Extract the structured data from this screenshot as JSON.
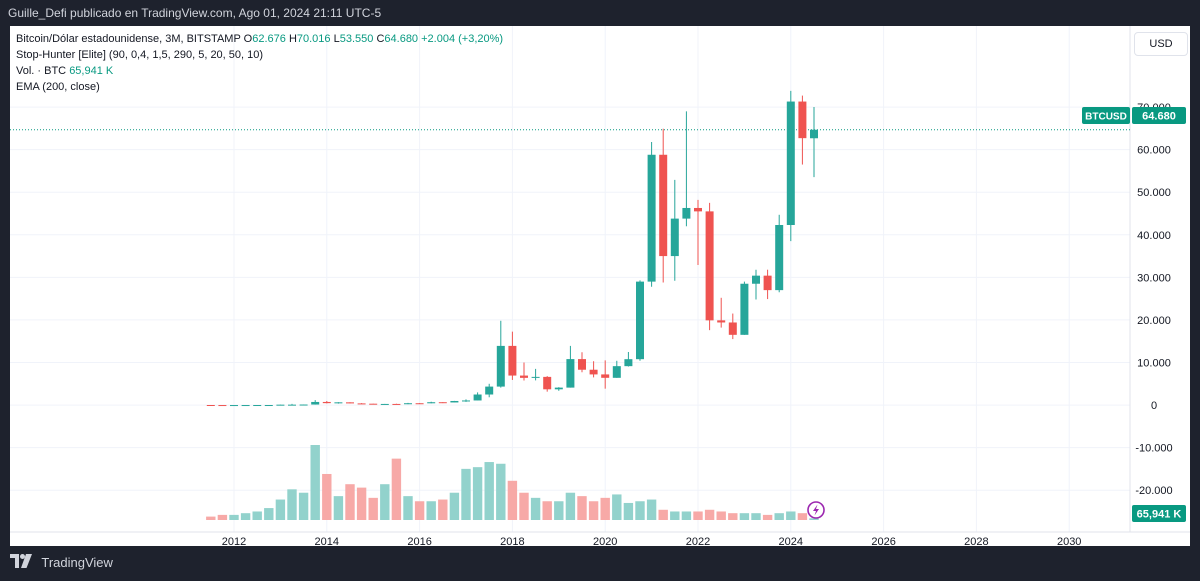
{
  "header": {
    "publisher_line": "Guille_Defi publicado en TradingView.com, Ago 01, 2024 21:11 UTC-5"
  },
  "legend": {
    "line1_prefix": "Bitcoin/Dólar estadounidense, 3M, BITSTAMP",
    "open_label": "O",
    "open": "62.676",
    "high_label": "H",
    "high": "70.016",
    "low_label": "L",
    "low": "53.550",
    "close_label": "C",
    "close": "64.680",
    "change": "+2.004 (+3,20%)",
    "line2": "Stop-Hunter [Elite] (90, 0,4, 1,5, 290, 5, 20, 50, 10)",
    "line3_label": "Vol. · BTC",
    "line3_value": "65,941 K",
    "line4": "EMA (200, close)"
  },
  "currency_button": "USD",
  "price_tag": {
    "symbol": "BTCUSD",
    "value": "64.680"
  },
  "volume_tag": "65,941 K",
  "footer": {
    "brand": "TradingView"
  },
  "colors": {
    "up": "#26a69a",
    "down": "#ef5350",
    "up_vol": "#92d2cc",
    "down_vol": "#f7a9a7",
    "price_line": "#089981"
  },
  "chart_data": {
    "type": "candlestick",
    "ylim": [
      -27000,
      82000
    ],
    "y_ticks": [
      "70.000",
      "60.000",
      "50.000",
      "40.000",
      "30.000",
      "20.000",
      "10.000",
      "0",
      "-10.000",
      "-20.000"
    ],
    "y_tick_values": [
      70000,
      60000,
      50000,
      40000,
      30000,
      20000,
      10000,
      0,
      -10000,
      -20000
    ],
    "x_ticks": [
      "2012",
      "2014",
      "2016",
      "2018",
      "2020",
      "2022",
      "2024",
      "2026",
      "2028",
      "2030"
    ],
    "x_tick_years": [
      2012,
      2014,
      2016,
      2018,
      2020,
      2022,
      2024,
      2026,
      2028,
      2030
    ],
    "last_price": 64680,
    "candles": [
      {
        "t": 2011.5,
        "o": 15,
        "h": 17,
        "l": 2,
        "c": 5
      },
      {
        "t": 2011.75,
        "o": 5,
        "h": 6,
        "l": 2,
        "c": 4
      },
      {
        "t": 2012.0,
        "o": 4,
        "h": 7,
        "l": 4,
        "c": 5
      },
      {
        "t": 2012.25,
        "o": 5,
        "h": 7,
        "l": 4,
        "c": 7
      },
      {
        "t": 2012.5,
        "o": 7,
        "h": 16,
        "l": 6,
        "c": 12
      },
      {
        "t": 2012.75,
        "o": 12,
        "h": 14,
        "l": 10,
        "c": 13
      },
      {
        "t": 2013.0,
        "o": 13,
        "h": 95,
        "l": 13,
        "c": 93
      },
      {
        "t": 2013.25,
        "o": 93,
        "h": 266,
        "l": 65,
        "c": 97
      },
      {
        "t": 2013.5,
        "o": 97,
        "h": 140,
        "l": 65,
        "c": 125
      },
      {
        "t": 2013.75,
        "o": 125,
        "h": 1163,
        "l": 110,
        "c": 730
      },
      {
        "t": 2014.0,
        "o": 730,
        "h": 960,
        "l": 400,
        "c": 450
      },
      {
        "t": 2014.25,
        "o": 450,
        "h": 680,
        "l": 340,
        "c": 640
      },
      {
        "t": 2014.5,
        "o": 640,
        "h": 650,
        "l": 380,
        "c": 390
      },
      {
        "t": 2014.75,
        "o": 390,
        "h": 460,
        "l": 280,
        "c": 320
      },
      {
        "t": 2015.0,
        "o": 320,
        "h": 320,
        "l": 170,
        "c": 245
      },
      {
        "t": 2015.25,
        "o": 245,
        "h": 270,
        "l": 210,
        "c": 265
      },
      {
        "t": 2015.5,
        "o": 265,
        "h": 315,
        "l": 200,
        "c": 236
      },
      {
        "t": 2015.75,
        "o": 236,
        "h": 500,
        "l": 235,
        "c": 430
      },
      {
        "t": 2016.0,
        "o": 430,
        "h": 460,
        "l": 360,
        "c": 415
      },
      {
        "t": 2016.25,
        "o": 415,
        "h": 780,
        "l": 415,
        "c": 670
      },
      {
        "t": 2016.5,
        "o": 670,
        "h": 680,
        "l": 470,
        "c": 610
      },
      {
        "t": 2016.75,
        "o": 610,
        "h": 980,
        "l": 600,
        "c": 960
      },
      {
        "t": 2017.0,
        "o": 960,
        "h": 1350,
        "l": 750,
        "c": 1080
      },
      {
        "t": 2017.25,
        "o": 1080,
        "h": 2980,
        "l": 1080,
        "c": 2480
      },
      {
        "t": 2017.5,
        "o": 2480,
        "h": 5000,
        "l": 1830,
        "c": 4340
      },
      {
        "t": 2017.75,
        "o": 4340,
        "h": 19800,
        "l": 4100,
        "c": 13900
      },
      {
        "t": 2018.0,
        "o": 13900,
        "h": 17250,
        "l": 5900,
        "c": 6930
      },
      {
        "t": 2018.25,
        "o": 6930,
        "h": 9990,
        "l": 5780,
        "c": 6390
      },
      {
        "t": 2018.5,
        "o": 6390,
        "h": 8500,
        "l": 5800,
        "c": 6620
      },
      {
        "t": 2018.75,
        "o": 6620,
        "h": 6800,
        "l": 3150,
        "c": 3700
      },
      {
        "t": 2019.0,
        "o": 3700,
        "h": 4200,
        "l": 3350,
        "c": 4100
      },
      {
        "t": 2019.25,
        "o": 4100,
        "h": 13900,
        "l": 4100,
        "c": 10800
      },
      {
        "t": 2019.5,
        "o": 10800,
        "h": 12400,
        "l": 7700,
        "c": 8300
      },
      {
        "t": 2019.75,
        "o": 8300,
        "h": 10300,
        "l": 6500,
        "c": 7200
      },
      {
        "t": 2020.0,
        "o": 7200,
        "h": 10500,
        "l": 3850,
        "c": 6400
      },
      {
        "t": 2020.25,
        "o": 6400,
        "h": 10400,
        "l": 6400,
        "c": 9140
      },
      {
        "t": 2020.5,
        "o": 9140,
        "h": 12470,
        "l": 9050,
        "c": 10780
      },
      {
        "t": 2020.75,
        "o": 10780,
        "h": 29300,
        "l": 10400,
        "c": 29000
      },
      {
        "t": 2021.0,
        "o": 29000,
        "h": 61800,
        "l": 27800,
        "c": 58800
      },
      {
        "t": 2021.25,
        "o": 58800,
        "h": 64900,
        "l": 28800,
        "c": 35000
      },
      {
        "t": 2021.5,
        "o": 35000,
        "h": 52900,
        "l": 29200,
        "c": 43800
      },
      {
        "t": 2021.75,
        "o": 43800,
        "h": 69000,
        "l": 42000,
        "c": 46300
      },
      {
        "t": 2022.0,
        "o": 46300,
        "h": 48200,
        "l": 32900,
        "c": 45500
      },
      {
        "t": 2022.25,
        "o": 45500,
        "h": 47500,
        "l": 17600,
        "c": 19900
      },
      {
        "t": 2022.5,
        "o": 19900,
        "h": 25200,
        "l": 18200,
        "c": 19400
      },
      {
        "t": 2022.75,
        "o": 19400,
        "h": 21500,
        "l": 15500,
        "c": 16500
      },
      {
        "t": 2023.0,
        "o": 16500,
        "h": 29000,
        "l": 16500,
        "c": 28500
      },
      {
        "t": 2023.25,
        "o": 28500,
        "h": 31800,
        "l": 24800,
        "c": 30400
      },
      {
        "t": 2023.5,
        "o": 30400,
        "h": 31800,
        "l": 24900,
        "c": 27000
      },
      {
        "t": 2023.75,
        "o": 27000,
        "h": 44700,
        "l": 26500,
        "c": 42300
      },
      {
        "t": 2024.0,
        "o": 42300,
        "h": 73800,
        "l": 38500,
        "c": 71300
      },
      {
        "t": 2024.25,
        "o": 71300,
        "h": 72700,
        "l": 56500,
        "c": 62700
      },
      {
        "t": 2024.5,
        "o": 62676,
        "h": 70016,
        "l": 53550,
        "c": 64680
      }
    ],
    "volume": [
      2,
      3,
      3,
      4,
      5,
      7,
      12,
      18,
      16,
      44,
      27,
      14,
      21,
      19,
      13,
      21,
      36,
      14,
      11,
      11,
      12,
      16,
      30,
      31,
      34,
      33,
      23,
      16,
      13,
      11,
      11,
      16,
      14,
      11,
      13,
      15,
      10,
      11,
      12,
      6,
      5,
      5,
      5,
      6,
      5,
      4,
      4,
      4,
      3,
      4,
      5,
      4,
      1
    ]
  }
}
